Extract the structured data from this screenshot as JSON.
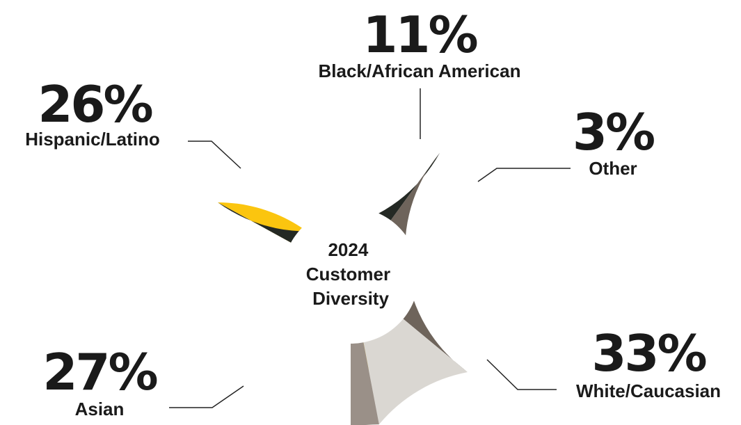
{
  "chart_data": {
    "type": "pie",
    "title": "2024 Customer Diversity",
    "title_lines": [
      "2024",
      "Customer",
      "Diversity"
    ],
    "slices": [
      {
        "label": "White/Caucasian",
        "value": 33,
        "display": "33%",
        "color": "#FBC50F"
      },
      {
        "label": "Asian",
        "value": 27,
        "display": "27%",
        "color": "#242924"
      },
      {
        "label": "Hispanic/Latino",
        "value": 26,
        "display": "26%",
        "color": "#6E645B"
      },
      {
        "label": "Black/African American",
        "value": 11,
        "display": "11%",
        "color": "#DAD7D2"
      },
      {
        "label": "Other",
        "value": 3,
        "display": "3%",
        "color": "#9A9088"
      }
    ]
  }
}
